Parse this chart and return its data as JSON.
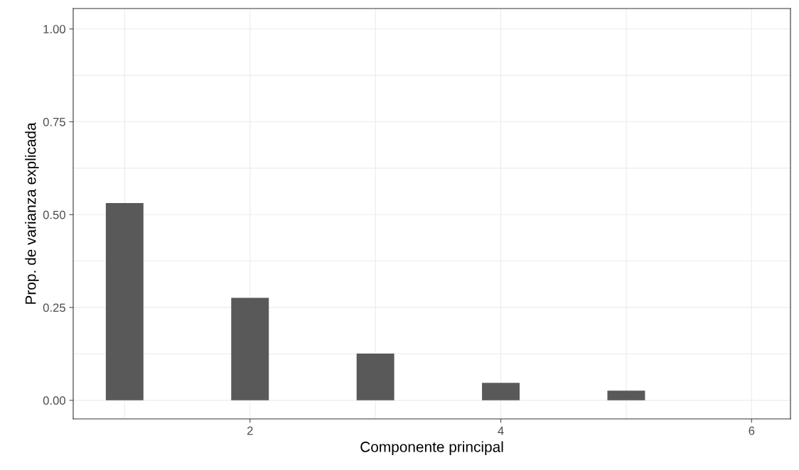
{
  "chart_data": {
    "type": "bar",
    "xlabel": "Componente principal",
    "ylabel": "Prop. de varianza explicada",
    "x": [
      1,
      2,
      3,
      4,
      5,
      6
    ],
    "values": [
      0.531,
      0.276,
      0.126,
      0.047,
      0.026,
      0
    ],
    "color": "#595959",
    "xlim": [
      0.59,
      6.31
    ],
    "xticks": [
      2,
      4,
      6
    ],
    "ylim": [
      -0.05,
      1.055
    ],
    "yticks": [
      {
        "value": 0,
        "label": "0.00"
      },
      {
        "value": 0.25,
        "label": "0.25"
      },
      {
        "value": 0.5,
        "label": "0.50"
      },
      {
        "value": 0.75,
        "label": "0.75"
      },
      {
        "value": 1,
        "label": "1.00"
      }
    ],
    "grid": true
  }
}
